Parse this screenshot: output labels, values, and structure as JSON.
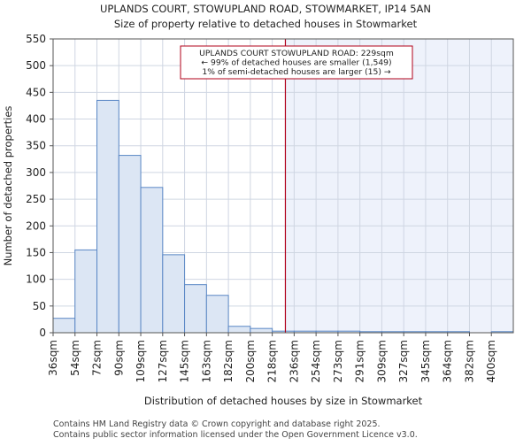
{
  "chart_data": {
    "type": "bar",
    "title": "UPLANDS COURT, STOWUPLAND ROAD, STOWMARKET, IP14 5AN",
    "subtitle": "Size of property relative to detached houses in Stowmarket",
    "xlabel": "Distribution of detached houses by size in Stowmarket",
    "ylabel": "Number of detached properties",
    "ylim": [
      0,
      550
    ],
    "yticks": [
      0,
      50,
      100,
      150,
      200,
      250,
      300,
      350,
      400,
      450,
      500,
      550
    ],
    "grid": true,
    "legend": "none",
    "categories": [
      "36sqm",
      "54sqm",
      "72sqm",
      "90sqm",
      "109sqm",
      "127sqm",
      "145sqm",
      "163sqm",
      "182sqm",
      "200sqm",
      "218sqm",
      "236sqm",
      "254sqm",
      "273sqm",
      "291sqm",
      "309sqm",
      "327sqm",
      "345sqm",
      "364sqm",
      "382sqm",
      "400sqm"
    ],
    "values": [
      27,
      155,
      435,
      332,
      272,
      146,
      90,
      70,
      12,
      8,
      3,
      3,
      3,
      3,
      2,
      2,
      2,
      2,
      2,
      0,
      2
    ],
    "property_marker": {
      "value_sqm": 229,
      "bin_position": 10.6
    },
    "annotation": {
      "lines": [
        "UPLANDS COURT STOWUPLAND ROAD: 229sqm",
        "← 99% of detached houses are smaller (1,549)",
        "1% of semi-detached houses are larger (15) →"
      ]
    },
    "colors": {
      "bar_fill": "#dce6f4",
      "bar_stroke": "#5a87c5",
      "marker_line": "#b0001a",
      "highlight_fill": "#eef2fb",
      "grid": "#cfd6e2",
      "annotation_border": "#b0001a"
    }
  },
  "footer": {
    "line1": "Contains HM Land Registry data © Crown copyright and database right 2025.",
    "line2": "Contains public sector information licensed under the Open Government Licence v3.0."
  }
}
